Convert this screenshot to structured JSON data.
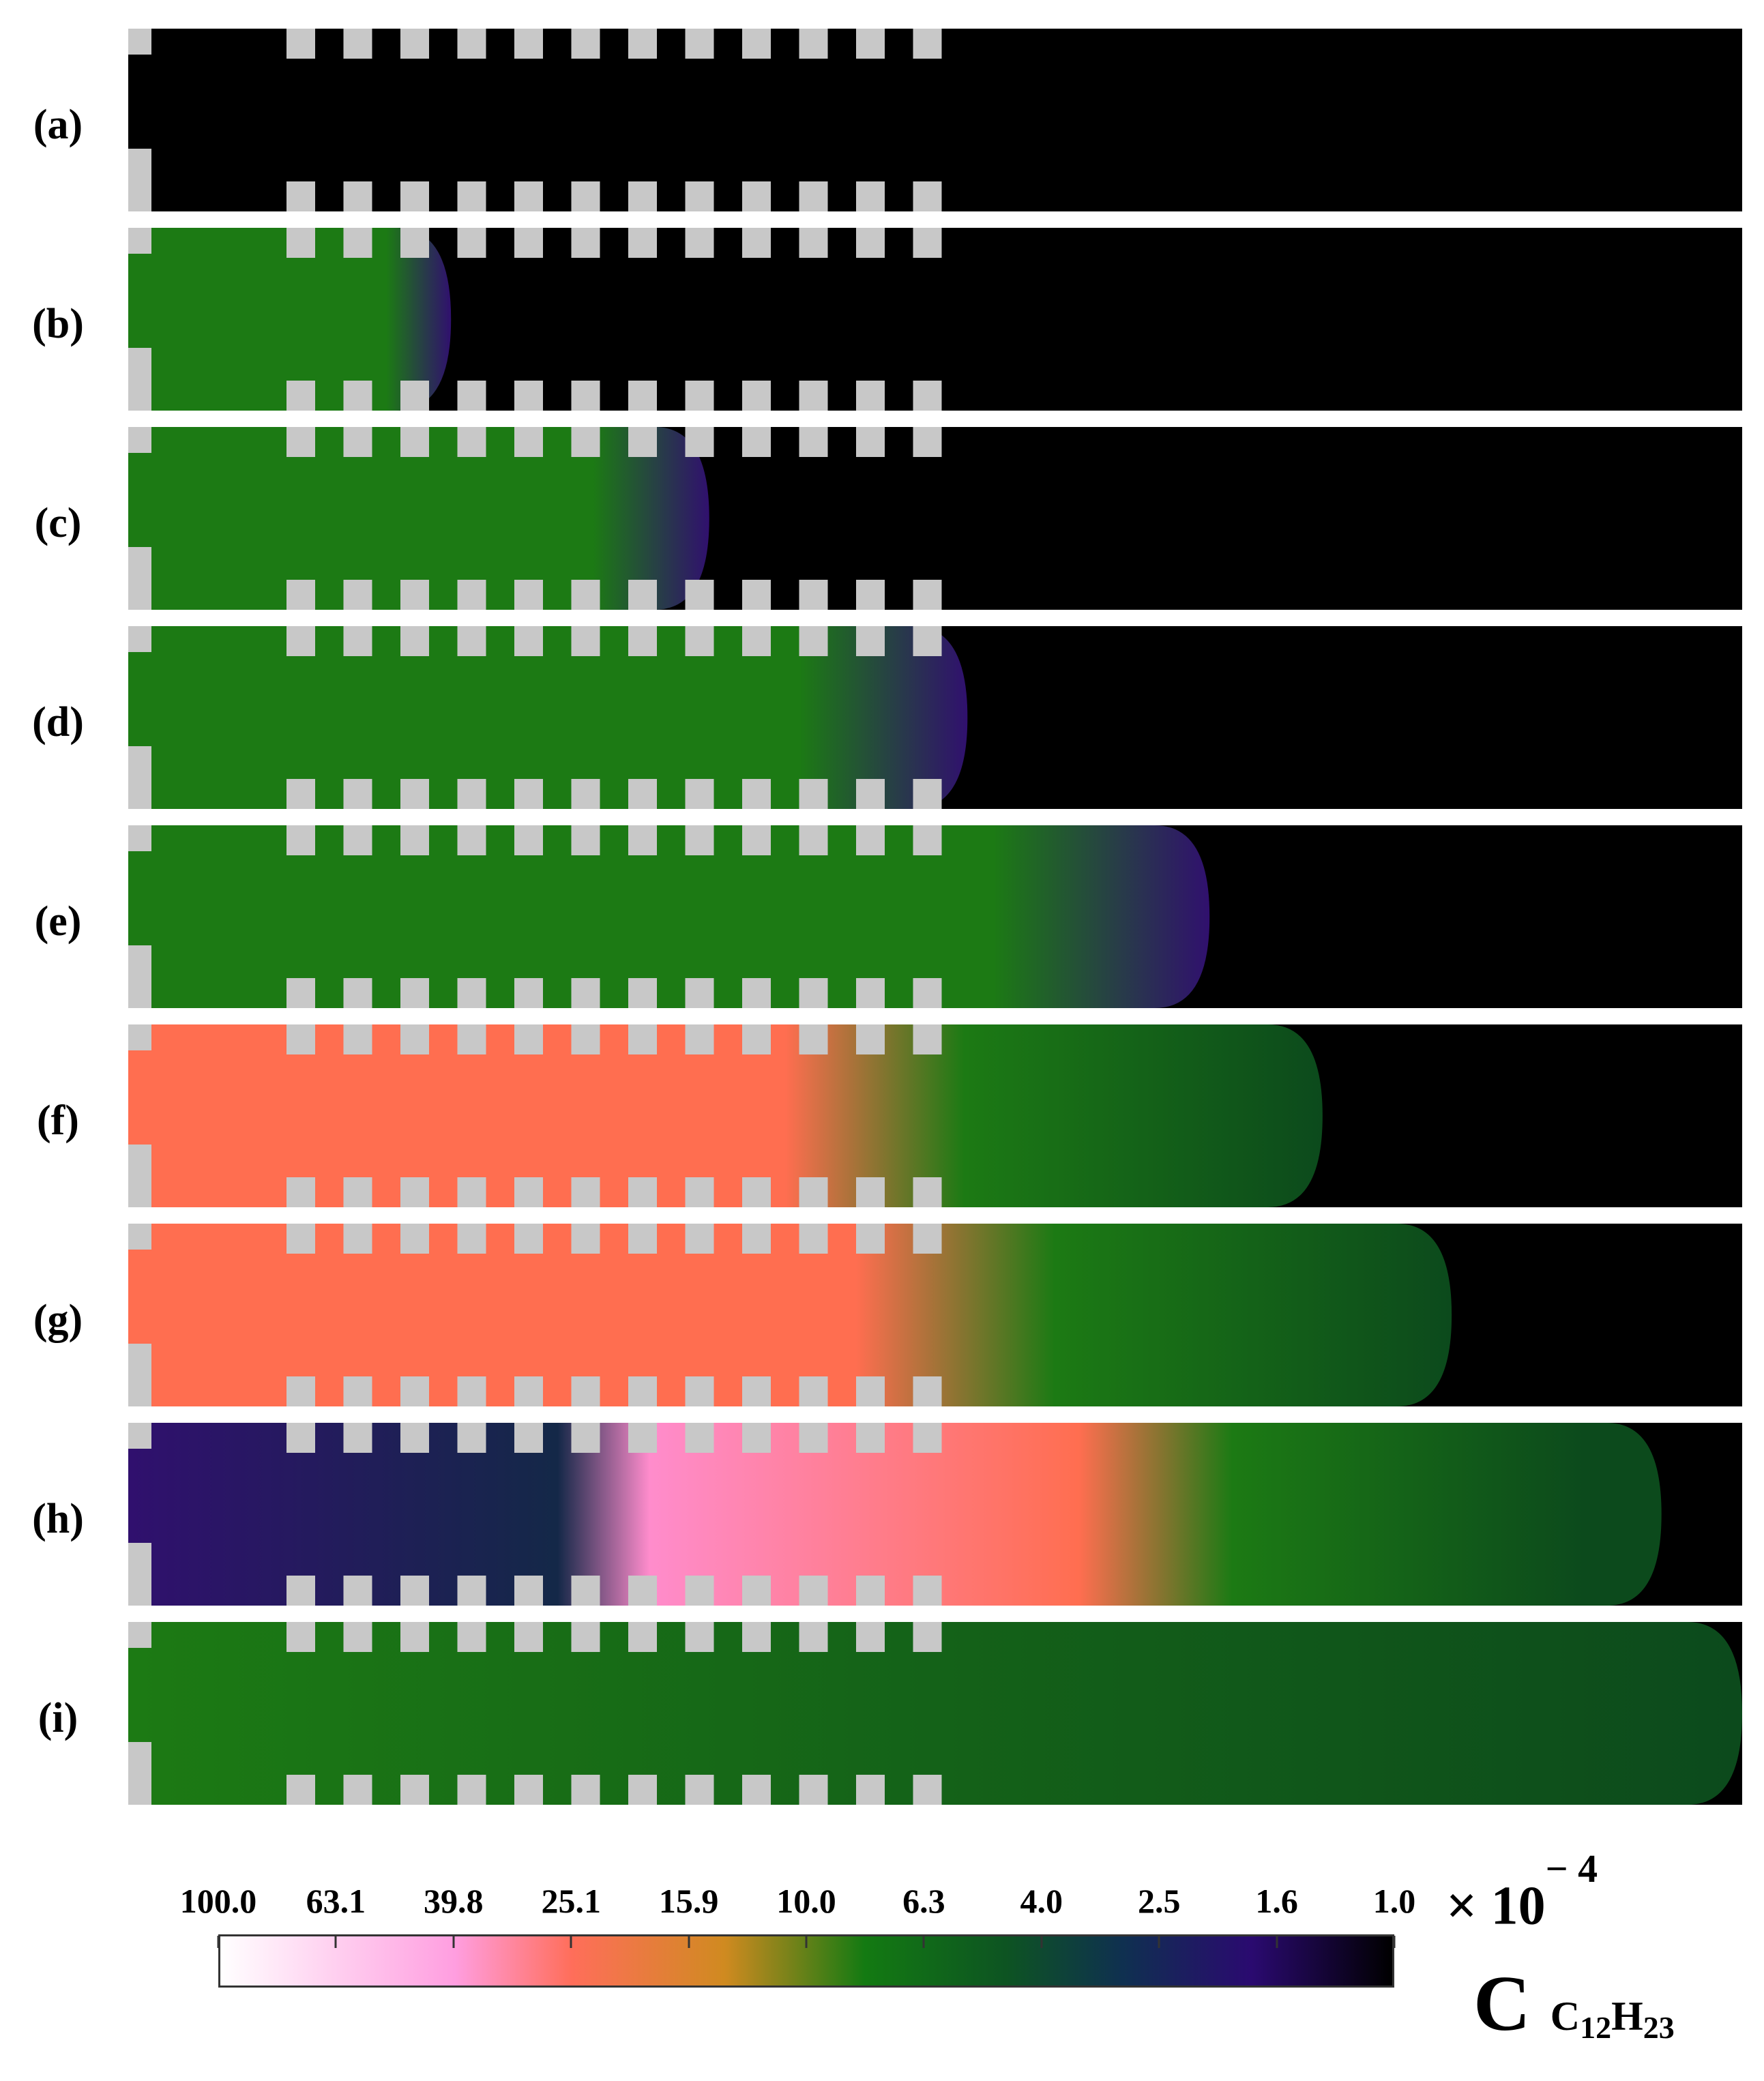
{
  "frames": [
    {
      "label": "(a)"
    },
    {
      "label": "(b)"
    },
    {
      "label": "(c)"
    },
    {
      "label": "(d)"
    },
    {
      "label": "(e)"
    },
    {
      "label": "(f)"
    },
    {
      "label": "(g)"
    },
    {
      "label": "(h)"
    },
    {
      "label": "(i)"
    }
  ],
  "colorbar": {
    "ticks": [
      "100.0",
      "63.1",
      "39.8",
      "25.1",
      "15.9",
      "10.0",
      "6.3",
      "4.0",
      "2.5",
      "1.6",
      "1.0"
    ],
    "multiplier_base": "× 10",
    "multiplier_exponent": "− 4",
    "quantity_symbol": "C",
    "quantity_subscript_1": "C",
    "quantity_subscript_1_index": "12",
    "quantity_subscript_2": "H",
    "quantity_subscript_2_index": "23",
    "colors": [
      "#ffffff",
      "#ffc0ee",
      "#ff8ad0",
      "#ff6e5a",
      "#d89020",
      "#1a8a10",
      "#0e5a20",
      "#103850",
      "#2a0a78",
      "#000000"
    ]
  },
  "palette": {
    "black": "#000000",
    "obstacle": "#c8c8c8",
    "green": "#1c7a14",
    "dark_green": "#0c4a1c",
    "orange": "#ff6e50",
    "pink": "#ff8ccc",
    "purple": "#30106e",
    "navy": "#142848"
  }
}
